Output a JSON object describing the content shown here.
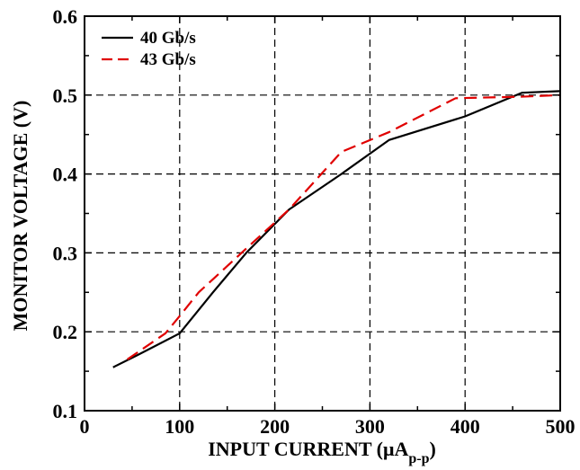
{
  "chart_data": {
    "type": "line",
    "xlabel": "INPUT CURRENT (μA",
    "xlabel_sub": "p-p",
    "xlabel_close": ")",
    "ylabel": "MONITOR VOLTAGE (V)",
    "xlim": [
      0,
      500
    ],
    "ylim": [
      0.1,
      0.6
    ],
    "xticks": [
      0,
      100,
      200,
      300,
      400,
      500
    ],
    "yticks": [
      0.1,
      0.2,
      0.3,
      0.4,
      0.5,
      0.6
    ],
    "xtick_labels": [
      "0",
      "100",
      "200",
      "300",
      "400",
      "500"
    ],
    "ytick_labels": [
      "0.1",
      "0.2",
      "0.3",
      "0.4",
      "0.5",
      "0.6"
    ],
    "grid": true,
    "legend_position": "top-left",
    "series": [
      {
        "name": "40 Gb/s",
        "color": "#000000",
        "dash": "solid",
        "x": [
          30,
          55,
          100,
          135,
          170,
          215,
          270,
          320,
          400,
          460,
          500
        ],
        "y": [
          0.155,
          0.17,
          0.198,
          0.25,
          0.3,
          0.355,
          0.4,
          0.443,
          0.473,
          0.503,
          0.505
        ]
      },
      {
        "name": "43 Gb/s",
        "color": "#e00000",
        "dash": "dashed",
        "x": [
          45,
          85,
          100,
          120,
          165,
          215,
          270,
          320,
          390,
          460,
          500
        ],
        "y": [
          0.165,
          0.198,
          0.22,
          0.25,
          0.3,
          0.355,
          0.428,
          0.453,
          0.496,
          0.498,
          0.5
        ]
      }
    ]
  }
}
